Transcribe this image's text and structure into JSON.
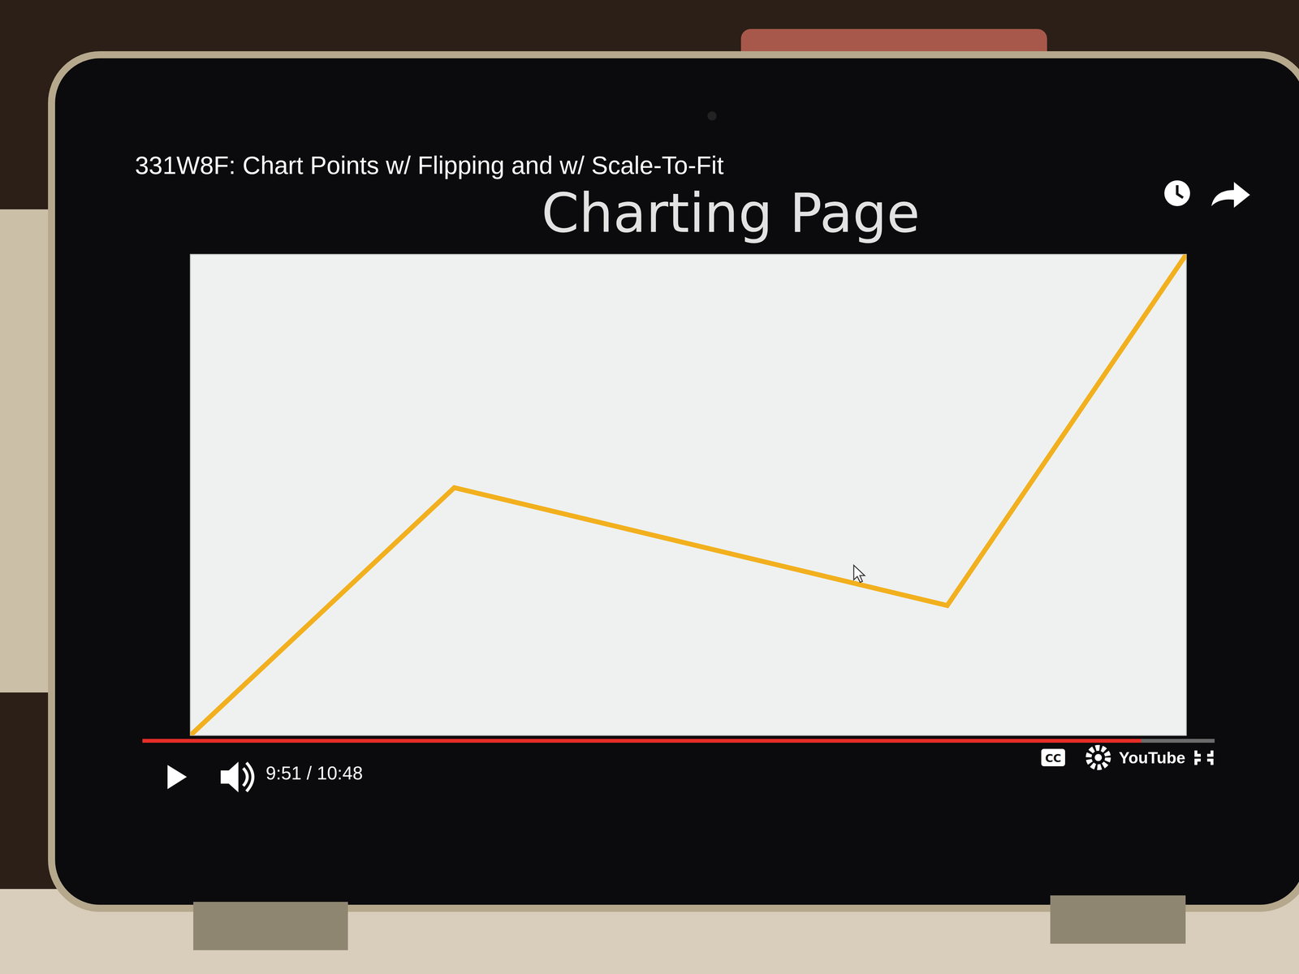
{
  "player": {
    "video_title": "331W8F: Chart Points w/ Flipping and w/ Scale-To-Fit",
    "time": "9:51 / 10:48",
    "logo": "YouTube",
    "captions": "CC"
  },
  "chart_data": {
    "type": "line",
    "title": "Charting Page",
    "x": [
      0,
      26.5,
      76,
      100
    ],
    "values": [
      0,
      51.5,
      27,
      100
    ],
    "xlim": [
      0,
      100
    ],
    "ylim": [
      0,
      100
    ],
    "color": "#f2b01e",
    "tick_labels": false,
    "grid": false,
    "marker": "none",
    "line_style": "solid"
  }
}
